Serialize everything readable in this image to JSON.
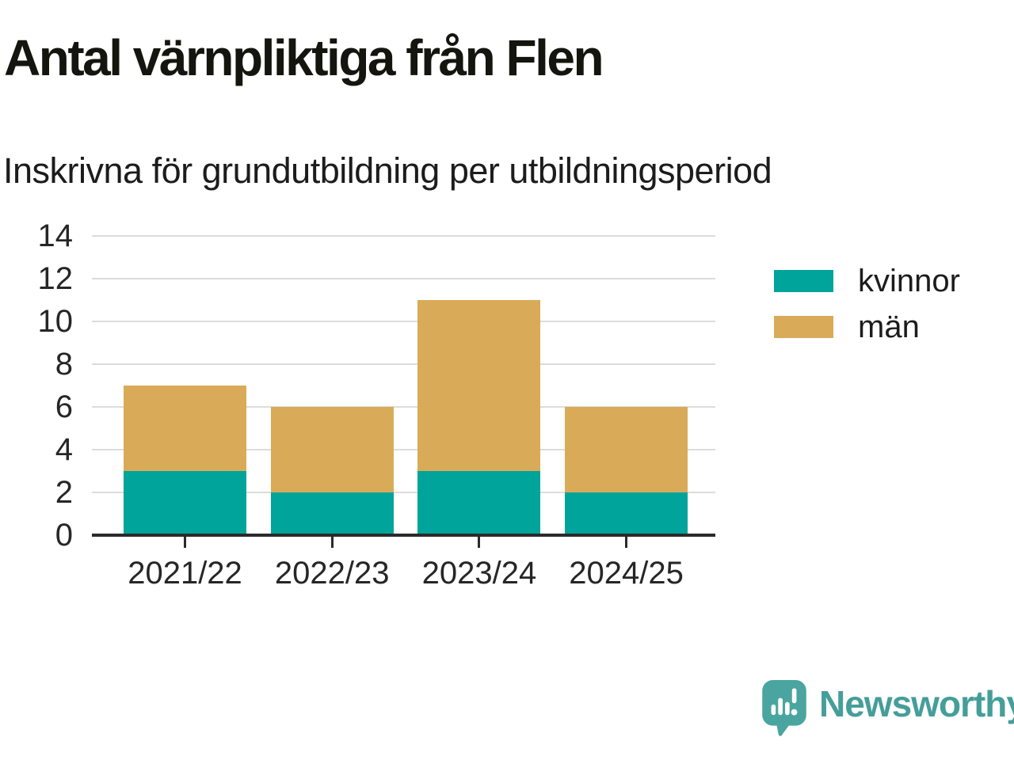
{
  "title": "Antal värnpliktiga från Flen",
  "subtitle": "Inskrivna för grundutbildning per utbildningsperiod",
  "chart_data": {
    "type": "bar",
    "stacked": true,
    "title": "Antal värnpliktiga från Flen",
    "subtitle": "Inskrivna för grundutbildning per utbildningsperiod",
    "categories": [
      "2021/22",
      "2022/23",
      "2023/24",
      "2024/25"
    ],
    "series": [
      {
        "name": "kvinnor",
        "color": "#00a49a",
        "values": [
          3,
          2,
          3,
          2
        ]
      },
      {
        "name": "män",
        "color": "#d9ab58",
        "values": [
          4,
          4,
          8,
          4
        ]
      }
    ],
    "totals": [
      7,
      6,
      11,
      6
    ],
    "xlabel": "",
    "ylabel": "",
    "ylim": [
      0,
      14
    ],
    "ytick_step": 2,
    "grid": true,
    "legend_position": "right"
  },
  "colors": {
    "grid": "#dcdcdc",
    "axis": "#2b2b2b",
    "text": "#262626"
  },
  "branding": {
    "logo_text": "Newsworthy",
    "logo_color": "#459e99"
  }
}
